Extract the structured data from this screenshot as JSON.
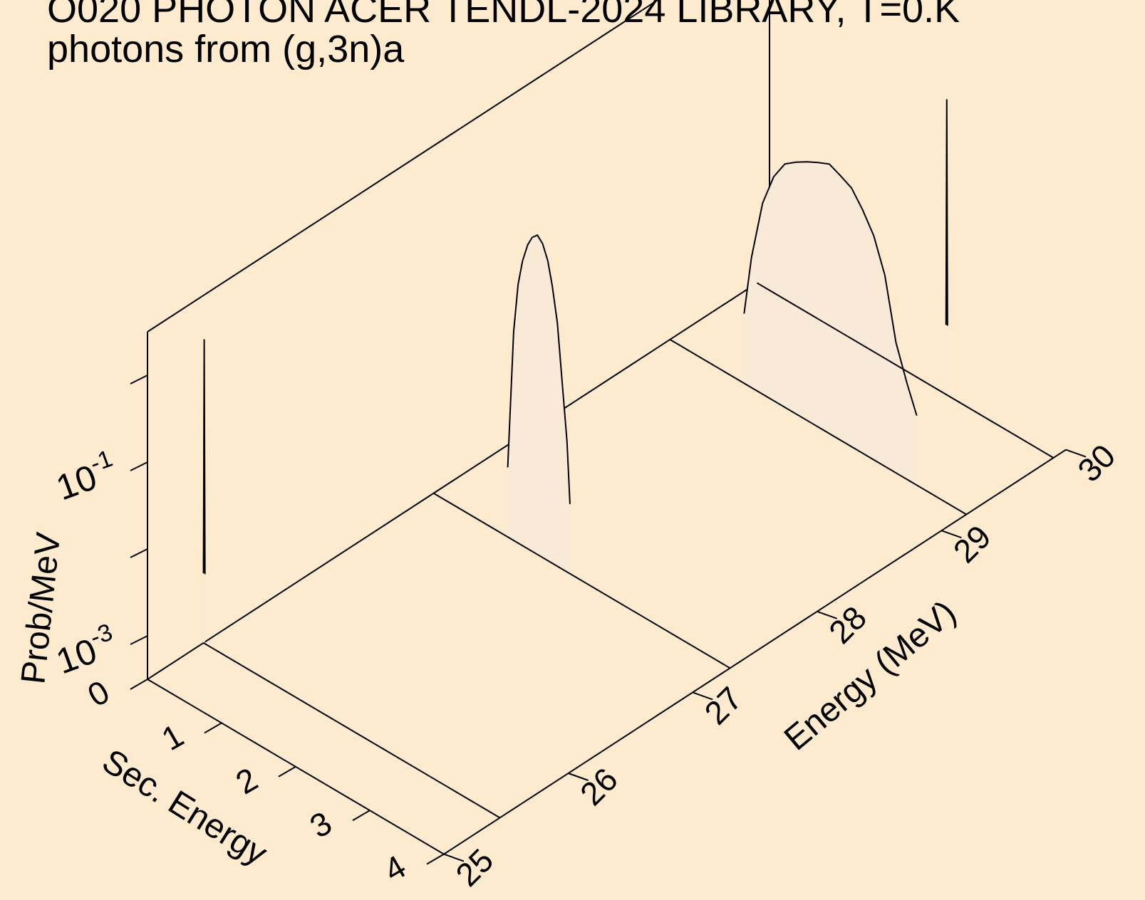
{
  "chart_data": {
    "type": "area",
    "title_lines": [
      "O020 PHOTON ACER TENDL-2024 LIBRARY, T=0.K",
      "photons from (g,3n)a"
    ],
    "xlabel": "Energy (MeV)",
    "ylabel": "Sec. Energy",
    "zlabel": "Prob/MeV",
    "z_scale": "log",
    "x_ticks": [
      "25",
      "26",
      "27",
      "28",
      "29",
      "30"
    ],
    "y_ticks": [
      "0",
      "1",
      "2",
      "3",
      "4"
    ],
    "z_ticks": [
      {
        "base": "10",
        "exp": "-3"
      },
      {
        "base": "10",
        "exp": "-1"
      }
    ],
    "xlim": [
      25,
      30
    ],
    "ylim": [
      0,
      4
    ],
    "series": [
      {
        "incident_energy": 25.45,
        "sec_energy": [
          0.0,
          0.01,
          0.02
        ],
        "prob": [
          0.002,
          1.0,
          0.002
        ]
      },
      {
        "incident_energy": 27.3,
        "sec_energy": [
          1.0,
          1.02,
          1.08,
          1.14,
          1.2,
          1.27,
          1.33,
          1.4,
          1.47,
          1.54,
          1.6,
          1.67,
          1.73,
          1.8,
          1.84
        ],
        "prob": [
          0.002,
          0.005,
          0.08,
          0.3,
          0.6,
          1.0,
          1.3,
          1.5,
          1.3,
          0.9,
          0.5,
          0.2,
          0.05,
          0.01,
          0.002
        ]
      },
      {
        "incident_energy": 29.2,
        "sec_energy": [
          1.0,
          1.1,
          1.25,
          1.4,
          1.55,
          1.7,
          1.85,
          2.0,
          2.15,
          2.3,
          2.45,
          2.6,
          2.75,
          2.9,
          3.05,
          3.2,
          3.33
        ],
        "prob": [
          0.002,
          0.01,
          0.05,
          0.12,
          0.2,
          0.25,
          0.3,
          0.35,
          0.4,
          0.35,
          0.3,
          0.2,
          0.12,
          0.05,
          0.01,
          0.004,
          0.002
        ]
      },
      {
        "incident_energy": 29.9,
        "sec_energy": [
          2.55,
          2.56,
          2.57
        ],
        "prob": [
          0.002,
          0.8,
          0.002
        ]
      }
    ]
  }
}
